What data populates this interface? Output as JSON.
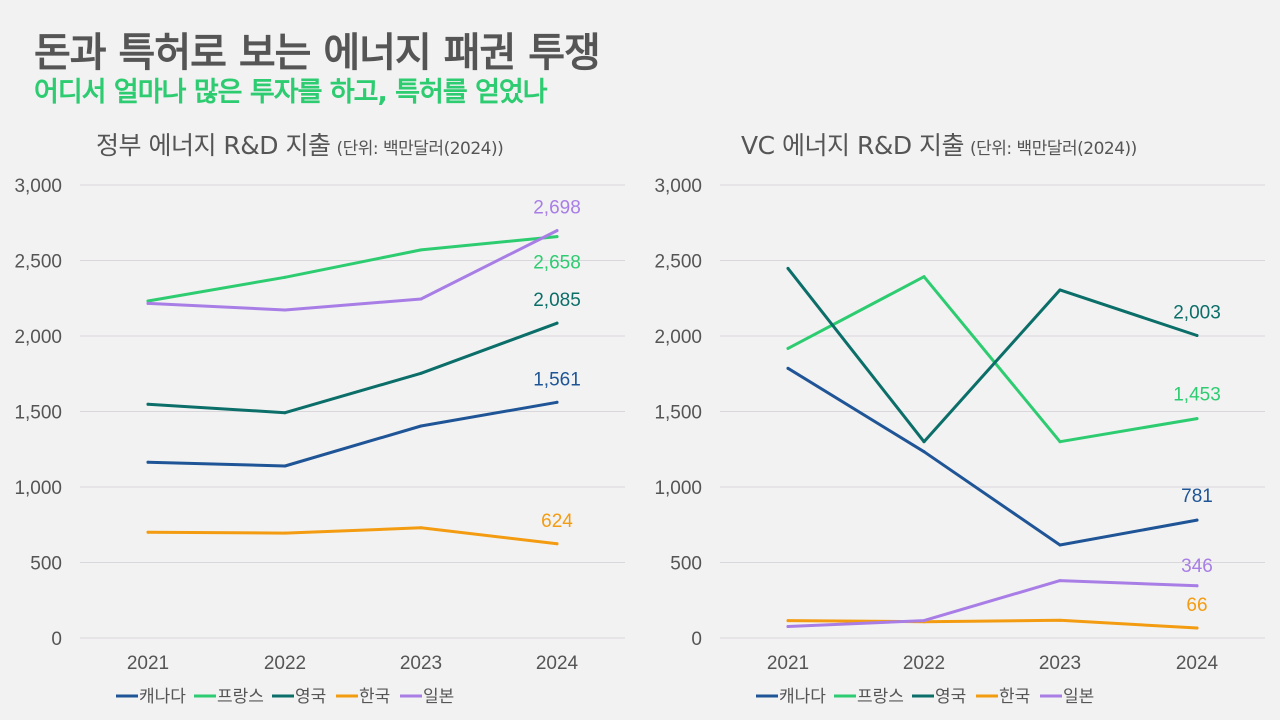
{
  "header": {
    "title": "돈과 특허로 보는 에너지 패권 투쟁",
    "subtitle": "어디서 얼마나 많은 투자를 하고, 특허를 얻었나"
  },
  "colors": {
    "title": "#555555",
    "subtitle": "#2ecc71",
    "gridline": "#d9d6dc",
    "series": {
      "캐나다": "#1f5596",
      "프랑스": "#2ecc71",
      "영국": "#0b6e69",
      "한국": "#f39c12",
      "일본": "#a87ee6"
    }
  },
  "chart_data": [
    {
      "type": "line",
      "title": "정부 에너지 R&D 지출",
      "unit_note": "(단위: 백만달러(2024))",
      "xlabel": "",
      "ylabel": "",
      "categories": [
        "2021",
        "2022",
        "2023",
        "2024"
      ],
      "ylim": [
        0,
        3000
      ],
      "yticks": [
        0,
        500,
        1000,
        1500,
        2000,
        2500,
        3000
      ],
      "ytick_labels": [
        "0",
        "500",
        "1,000",
        "1,500",
        "2,000",
        "2,500",
        "3,000"
      ],
      "grid": true,
      "legend_position": "bottom",
      "series": [
        {
          "name": "캐나다",
          "values": [
            1164,
            1139,
            1404,
            1561
          ],
          "end_label": "1,561"
        },
        {
          "name": "프랑스",
          "values": [
            2232,
            2389,
            2570,
            2658
          ],
          "end_label": "2,658"
        },
        {
          "name": "영국",
          "values": [
            1548,
            1492,
            1753,
            2085
          ],
          "end_label": "2,085"
        },
        {
          "name": "한국",
          "values": [
            700,
            695,
            730,
            624
          ],
          "end_label": "624"
        },
        {
          "name": "일본",
          "values": [
            2216,
            2172,
            2245,
            2698
          ],
          "end_label": "2,698"
        }
      ]
    },
    {
      "type": "line",
      "title": "VC 에너지 R&D 지출",
      "unit_note": "(단위: 백만달러(2024))",
      "xlabel": "",
      "ylabel": "",
      "categories": [
        "2021",
        "2022",
        "2023",
        "2024"
      ],
      "ylim": [
        0,
        3000
      ],
      "yticks": [
        0,
        500,
        1000,
        1500,
        2000,
        2500,
        3000
      ],
      "ytick_labels": [
        "0",
        "500",
        "1,000",
        "1,500",
        "2,000",
        "2,500",
        "3,000"
      ],
      "grid": true,
      "legend_position": "bottom",
      "series": [
        {
          "name": "캐나다",
          "values": [
            1786,
            1234,
            616,
            781
          ],
          "end_label": "781"
        },
        {
          "name": "프랑스",
          "values": [
            1918,
            2393,
            1300,
            1453
          ],
          "end_label": "1,453"
        },
        {
          "name": "영국",
          "values": [
            2448,
            1300,
            2305,
            2003
          ],
          "end_label": "2,003"
        },
        {
          "name": "한국",
          "values": [
            115,
            108,
            117,
            66
          ],
          "end_label": "66"
        },
        {
          "name": "일본",
          "values": [
            76,
            115,
            380,
            346
          ],
          "end_label": "346"
        }
      ]
    }
  ]
}
